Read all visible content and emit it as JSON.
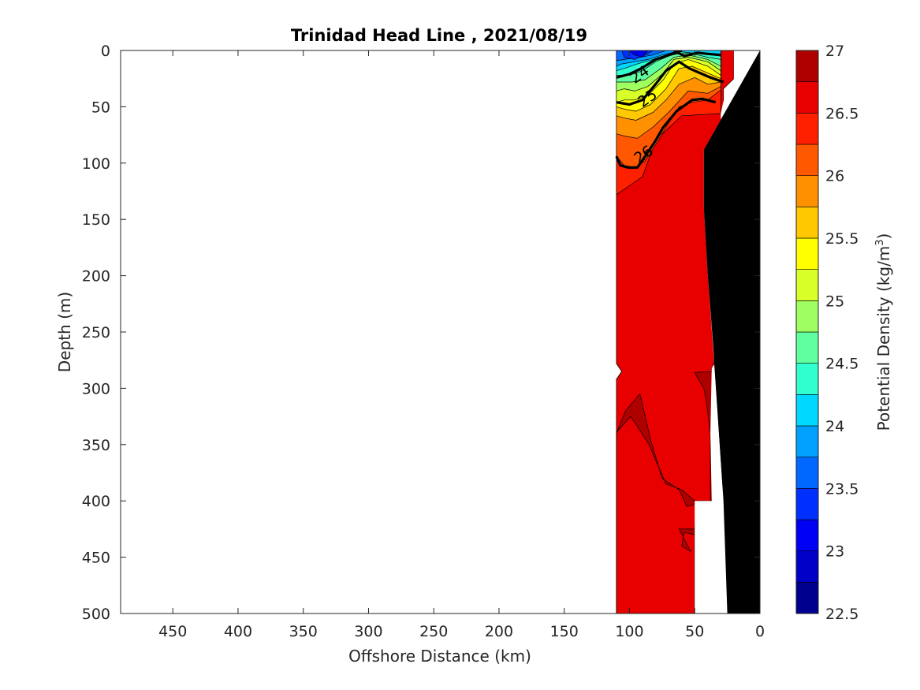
{
  "chart_data": {
    "type": "contour",
    "title": "Trinidad Head Line , 2021/08/19",
    "xlabel": "Offshore Distance (km)",
    "ylabel": "Depth (m)",
    "xlim": [
      490,
      0
    ],
    "ylim": [
      500,
      0
    ],
    "x_reversed": true,
    "y_reversed": true,
    "x_ticks": [
      450,
      400,
      350,
      300,
      250,
      200,
      150,
      100,
      50,
      0
    ],
    "y_ticks": [
      0,
      50,
      100,
      150,
      200,
      250,
      300,
      350,
      400,
      450,
      500
    ],
    "grid": false,
    "colorbar": {
      "label": "Potential Density (kg/m",
      "label_superscript": "3",
      "label_suffix": ")",
      "min": 22.5,
      "max": 27,
      "step": 0.25,
      "tick_values": [
        22.5,
        23,
        23.5,
        24,
        24.5,
        25,
        25.5,
        26,
        26.5,
        27
      ],
      "tick_labels": [
        "22.5",
        "23",
        "23.5",
        "24",
        "24.5",
        "25",
        "25.5",
        "26",
        "26.5",
        "27"
      ],
      "colormap": "jet",
      "colors": [
        "#00008f",
        "#0000c8",
        "#0000f5",
        "#0030ff",
        "#0068ff",
        "#00a0ff",
        "#00d8ff",
        "#30ffd0",
        "#60ffa0",
        "#a0ff60",
        "#d8ff28",
        "#ffff00",
        "#ffc800",
        "#ff9000",
        "#ff5800",
        "#ff2000",
        "#e80000",
        "#af0000"
      ]
    },
    "contour_labels": [
      {
        "text": "24",
        "value": 24,
        "x": 90,
        "y": 25
      },
      {
        "text": "25",
        "value": 25,
        "x": 84,
        "y": 46
      },
      {
        "text": "26",
        "value": 26,
        "x": 87,
        "y": 96
      }
    ],
    "regions": [
      {
        "sigma": 26.5,
        "polygon": [
          [
            110,
            0
          ],
          [
            20,
            0
          ],
          [
            20,
            25
          ],
          [
            28,
            34
          ],
          [
            28,
            56
          ],
          [
            30,
            270
          ],
          [
            37,
            282
          ],
          [
            37,
            420
          ],
          [
            50,
            420
          ],
          [
            50,
            500
          ],
          [
            110,
            500
          ],
          [
            110,
            292
          ],
          [
            106,
            285
          ],
          [
            110,
            278
          ]
        ]
      },
      {
        "sigma": 26.75,
        "polygon": [
          [
            110,
            340
          ],
          [
            103,
            320
          ],
          [
            92,
            305
          ],
          [
            84,
            345
          ],
          [
            75,
            380
          ],
          [
            62,
            390
          ],
          [
            56,
            405
          ],
          [
            38,
            400
          ],
          [
            38,
            340
          ],
          [
            41,
            312
          ],
          [
            43,
            300
          ],
          [
            50,
            286
          ],
          [
            36,
            285
          ],
          [
            35,
            270
          ],
          [
            29,
            270
          ],
          [
            29,
            400
          ],
          [
            50,
            400
          ],
          [
            60,
            390
          ],
          [
            72,
            385
          ],
          [
            85,
            350
          ],
          [
            99,
            325
          ],
          [
            110,
            339
          ],
          [
            110,
            500
          ],
          [
            50,
            500
          ],
          [
            50,
            425
          ],
          [
            62,
            425
          ],
          [
            53,
            445
          ],
          [
            60,
            440
          ],
          [
            58,
            428
          ],
          [
            50,
            430
          ],
          [
            50,
            500
          ],
          [
            110,
            500
          ]
        ]
      },
      {
        "sigma": 26.25,
        "polygon": [
          [
            110,
            0
          ],
          [
            30,
            0
          ],
          [
            30,
            56
          ],
          [
            60,
            58
          ],
          [
            80,
            80
          ],
          [
            90,
            112
          ],
          [
            100,
            120
          ],
          [
            110,
            128
          ]
        ]
      },
      {
        "sigma": 26.0,
        "polygon": [
          [
            110,
            0
          ],
          [
            30,
            0
          ],
          [
            30,
            35
          ],
          [
            40,
            44
          ],
          [
            52,
            46
          ],
          [
            62,
            50
          ],
          [
            72,
            68
          ],
          [
            78,
            80
          ],
          [
            88,
            98
          ],
          [
            96,
            104
          ],
          [
            104,
            102
          ],
          [
            110,
            94
          ]
        ]
      },
      {
        "sigma": 25.75,
        "polygon": [
          [
            110,
            0
          ],
          [
            30,
            0
          ],
          [
            30,
            32
          ],
          [
            40,
            38
          ],
          [
            55,
            36
          ],
          [
            70,
            55
          ],
          [
            82,
            68
          ],
          [
            94,
            78
          ],
          [
            104,
            76
          ],
          [
            110,
            74
          ]
        ]
      },
      {
        "sigma": 25.5,
        "polygon": [
          [
            110,
            0
          ],
          [
            30,
            0
          ],
          [
            30,
            28
          ],
          [
            40,
            30
          ],
          [
            50,
            24
          ],
          [
            62,
            30
          ],
          [
            72,
            44
          ],
          [
            82,
            55
          ],
          [
            95,
            62
          ],
          [
            104,
            60
          ],
          [
            110,
            58
          ]
        ]
      },
      {
        "sigma": 25.25,
        "polygon": [
          [
            110,
            0
          ],
          [
            30,
            0
          ],
          [
            30,
            25
          ],
          [
            40,
            20
          ],
          [
            52,
            14
          ],
          [
            62,
            16
          ],
          [
            72,
            34
          ],
          [
            84,
            48
          ],
          [
            95,
            54
          ],
          [
            104,
            52
          ],
          [
            110,
            50
          ]
        ]
      },
      {
        "sigma": 25.0,
        "polygon": [
          [
            110,
            0
          ],
          [
            30,
            0
          ],
          [
            30,
            22
          ],
          [
            40,
            14
          ],
          [
            55,
            8
          ],
          [
            66,
            12
          ],
          [
            74,
            26
          ],
          [
            86,
            40
          ],
          [
            96,
            44
          ],
          [
            104,
            44
          ],
          [
            110,
            46
          ]
        ]
      },
      {
        "sigma": 24.75,
        "polygon": [
          [
            110,
            0
          ],
          [
            30,
            0
          ],
          [
            30,
            18
          ],
          [
            40,
            10
          ],
          [
            55,
            6
          ],
          [
            66,
            8
          ],
          [
            74,
            20
          ],
          [
            86,
            32
          ],
          [
            96,
            36
          ],
          [
            104,
            34
          ],
          [
            110,
            36
          ]
        ]
      },
      {
        "sigma": 24.5,
        "polygon": [
          [
            110,
            0
          ],
          [
            30,
            0
          ],
          [
            30,
            14
          ],
          [
            40,
            8
          ],
          [
            55,
            4
          ],
          [
            66,
            6
          ],
          [
            76,
            16
          ],
          [
            88,
            26
          ],
          [
            98,
            28
          ],
          [
            110,
            28
          ]
        ]
      },
      {
        "sigma": 24.25,
        "polygon": [
          [
            110,
            0
          ],
          [
            30,
            0
          ],
          [
            30,
            8
          ],
          [
            40,
            6
          ],
          [
            55,
            2
          ],
          [
            68,
            4
          ],
          [
            80,
            10
          ],
          [
            90,
            18
          ],
          [
            100,
            22
          ],
          [
            110,
            22
          ]
        ]
      },
      {
        "sigma": 24.0,
        "polygon": [
          [
            110,
            0
          ],
          [
            30,
            0
          ],
          [
            30,
            5
          ],
          [
            45,
            3
          ],
          [
            62,
            1
          ],
          [
            72,
            4
          ],
          [
            82,
            8
          ],
          [
            94,
            12
          ],
          [
            104,
            16
          ],
          [
            110,
            18
          ]
        ]
      },
      {
        "sigma": 23.75,
        "polygon": [
          [
            110,
            0
          ],
          [
            60,
            0
          ],
          [
            75,
            4
          ],
          [
            86,
            8
          ],
          [
            96,
            10
          ],
          [
            106,
            12
          ],
          [
            110,
            14
          ]
        ]
      },
      {
        "sigma": 23.5,
        "polygon": [
          [
            110,
            0
          ],
          [
            72,
            0
          ],
          [
            82,
            4
          ],
          [
            92,
            6
          ],
          [
            104,
            8
          ],
          [
            110,
            9
          ]
        ]
      },
      {
        "sigma": 23.25,
        "polygon": [
          [
            106,
            0
          ],
          [
            82,
            0
          ],
          [
            88,
            4
          ],
          [
            96,
            8
          ],
          [
            104,
            6
          ]
        ]
      },
      {
        "sigma": 23.0,
        "polygon": [
          [
            100,
            0
          ],
          [
            86,
            0
          ],
          [
            90,
            6
          ],
          [
            96,
            4
          ]
        ]
      }
    ],
    "bold_contours": [
      {
        "value": 24,
        "points": [
          [
            110,
            24
          ],
          [
            100,
            21
          ],
          [
            91,
            16
          ],
          [
            80,
            8
          ],
          [
            67,
            3
          ],
          [
            60,
            0
          ]
        ]
      },
      {
        "value": 24,
        "points": [
          [
            66,
            0
          ],
          [
            58,
            5
          ],
          [
            48,
            2
          ],
          [
            40,
            3
          ],
          [
            30,
            4
          ]
        ]
      },
      {
        "value": 25,
        "points": [
          [
            110,
            46
          ],
          [
            100,
            48
          ],
          [
            90,
            44
          ],
          [
            80,
            30
          ],
          [
            72,
            18
          ],
          [
            62,
            10
          ],
          [
            54,
            16
          ],
          [
            46,
            20
          ],
          [
            38,
            24
          ],
          [
            28,
            28
          ]
        ]
      },
      {
        "value": 26,
        "points": [
          [
            110,
            94
          ],
          [
            107,
            102
          ],
          [
            101,
            104
          ],
          [
            94,
            104
          ],
          [
            88,
            94
          ],
          [
            80,
            80
          ],
          [
            74,
            68
          ],
          [
            64,
            54
          ],
          [
            52,
            44
          ],
          [
            44,
            43
          ],
          [
            34,
            46
          ]
        ]
      }
    ],
    "seafloor": {
      "polygon": [
        [
          0,
          0
        ],
        [
          0,
          500
        ],
        [
          25,
          500
        ],
        [
          28,
          400
        ],
        [
          34,
          295
        ],
        [
          36,
          260
        ],
        [
          40,
          200
        ],
        [
          43,
          140
        ],
        [
          43,
          88
        ],
        [
          0,
          0
        ]
      ]
    },
    "nodata_gaps": [
      {
        "polygon": [
          [
            30,
            0
          ],
          [
            20,
            0
          ],
          [
            20,
            30
          ],
          [
            28,
            45
          ],
          [
            30,
            56
          ],
          [
            30,
            270
          ],
          [
            37,
            282
          ],
          [
            38,
            340
          ],
          [
            37,
            400
          ],
          [
            50,
            400
          ],
          [
            50,
            500
          ],
          [
            25,
            500
          ],
          [
            28,
            400
          ],
          [
            34,
            295
          ],
          [
            40,
            200
          ],
          [
            43,
            140
          ],
          [
            43,
            88
          ],
          [
            0,
            0
          ]
        ]
      }
    ]
  }
}
